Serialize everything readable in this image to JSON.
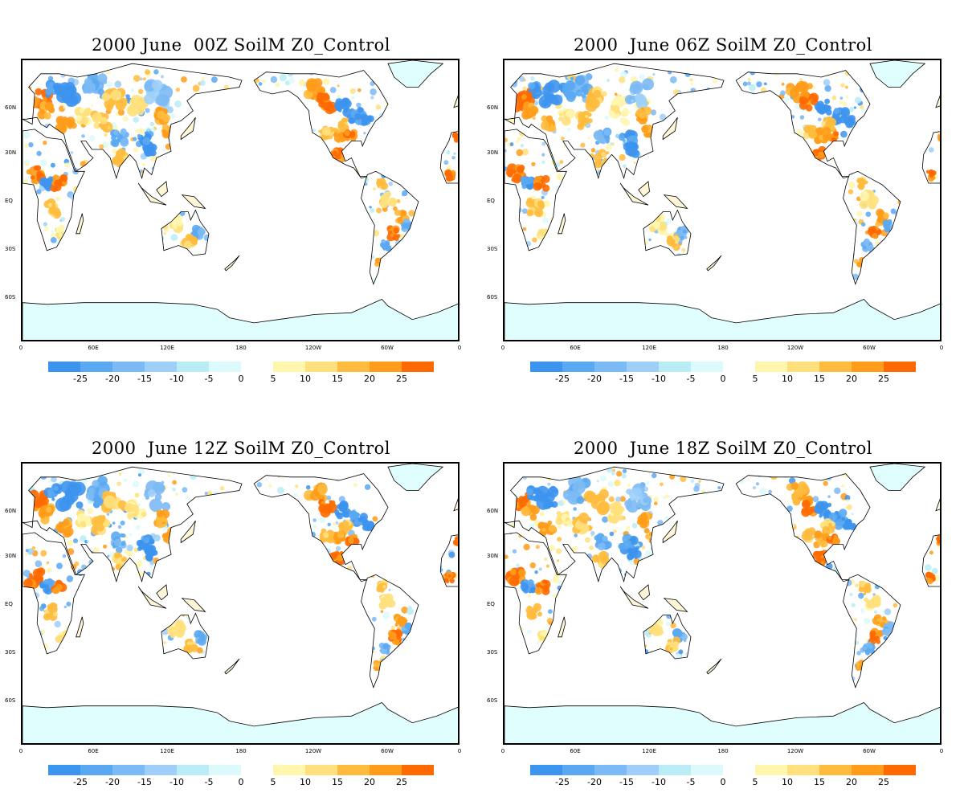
{
  "panels": [
    {
      "title": "2000 June  00Z SoilM Z0_Control",
      "time": "00Z"
    },
    {
      "title": "2000  June 06Z SoilM Z0_Control",
      "time": "06Z"
    },
    {
      "title": "2000  June 12Z SoilM Z0_Control",
      "time": "12Z"
    },
    {
      "title": "2000  June 18Z SoilM Z0_Control",
      "time": "18Z"
    }
  ],
  "lat_labels": [
    "60N",
    "30N",
    "EQ",
    "30S",
    "60S"
  ],
  "lon_labels": [
    "0",
    "60E",
    "120E",
    "180",
    "120W",
    "60W",
    "0"
  ],
  "colorbar": {
    "negative": {
      "labels": [
        "-25",
        "-20",
        "-15",
        "-10",
        "-5",
        "0"
      ],
      "colors": [
        "#3d94ee",
        "#5aa8f2",
        "#7cbaf5",
        "#9dcff8",
        "#b9ecf4",
        "#dcf9fb"
      ]
    },
    "positive": {
      "labels": [
        "5",
        "10",
        "15",
        "20",
        "25"
      ],
      "colors": [
        "#fff6ae",
        "#ffe07c",
        "#ffbb3d",
        "#ff9c1a",
        "#ff6a00"
      ]
    }
  },
  "colors": {
    "land": "#ffffff",
    "ice": "#dffefd",
    "coast": "#000000"
  }
}
